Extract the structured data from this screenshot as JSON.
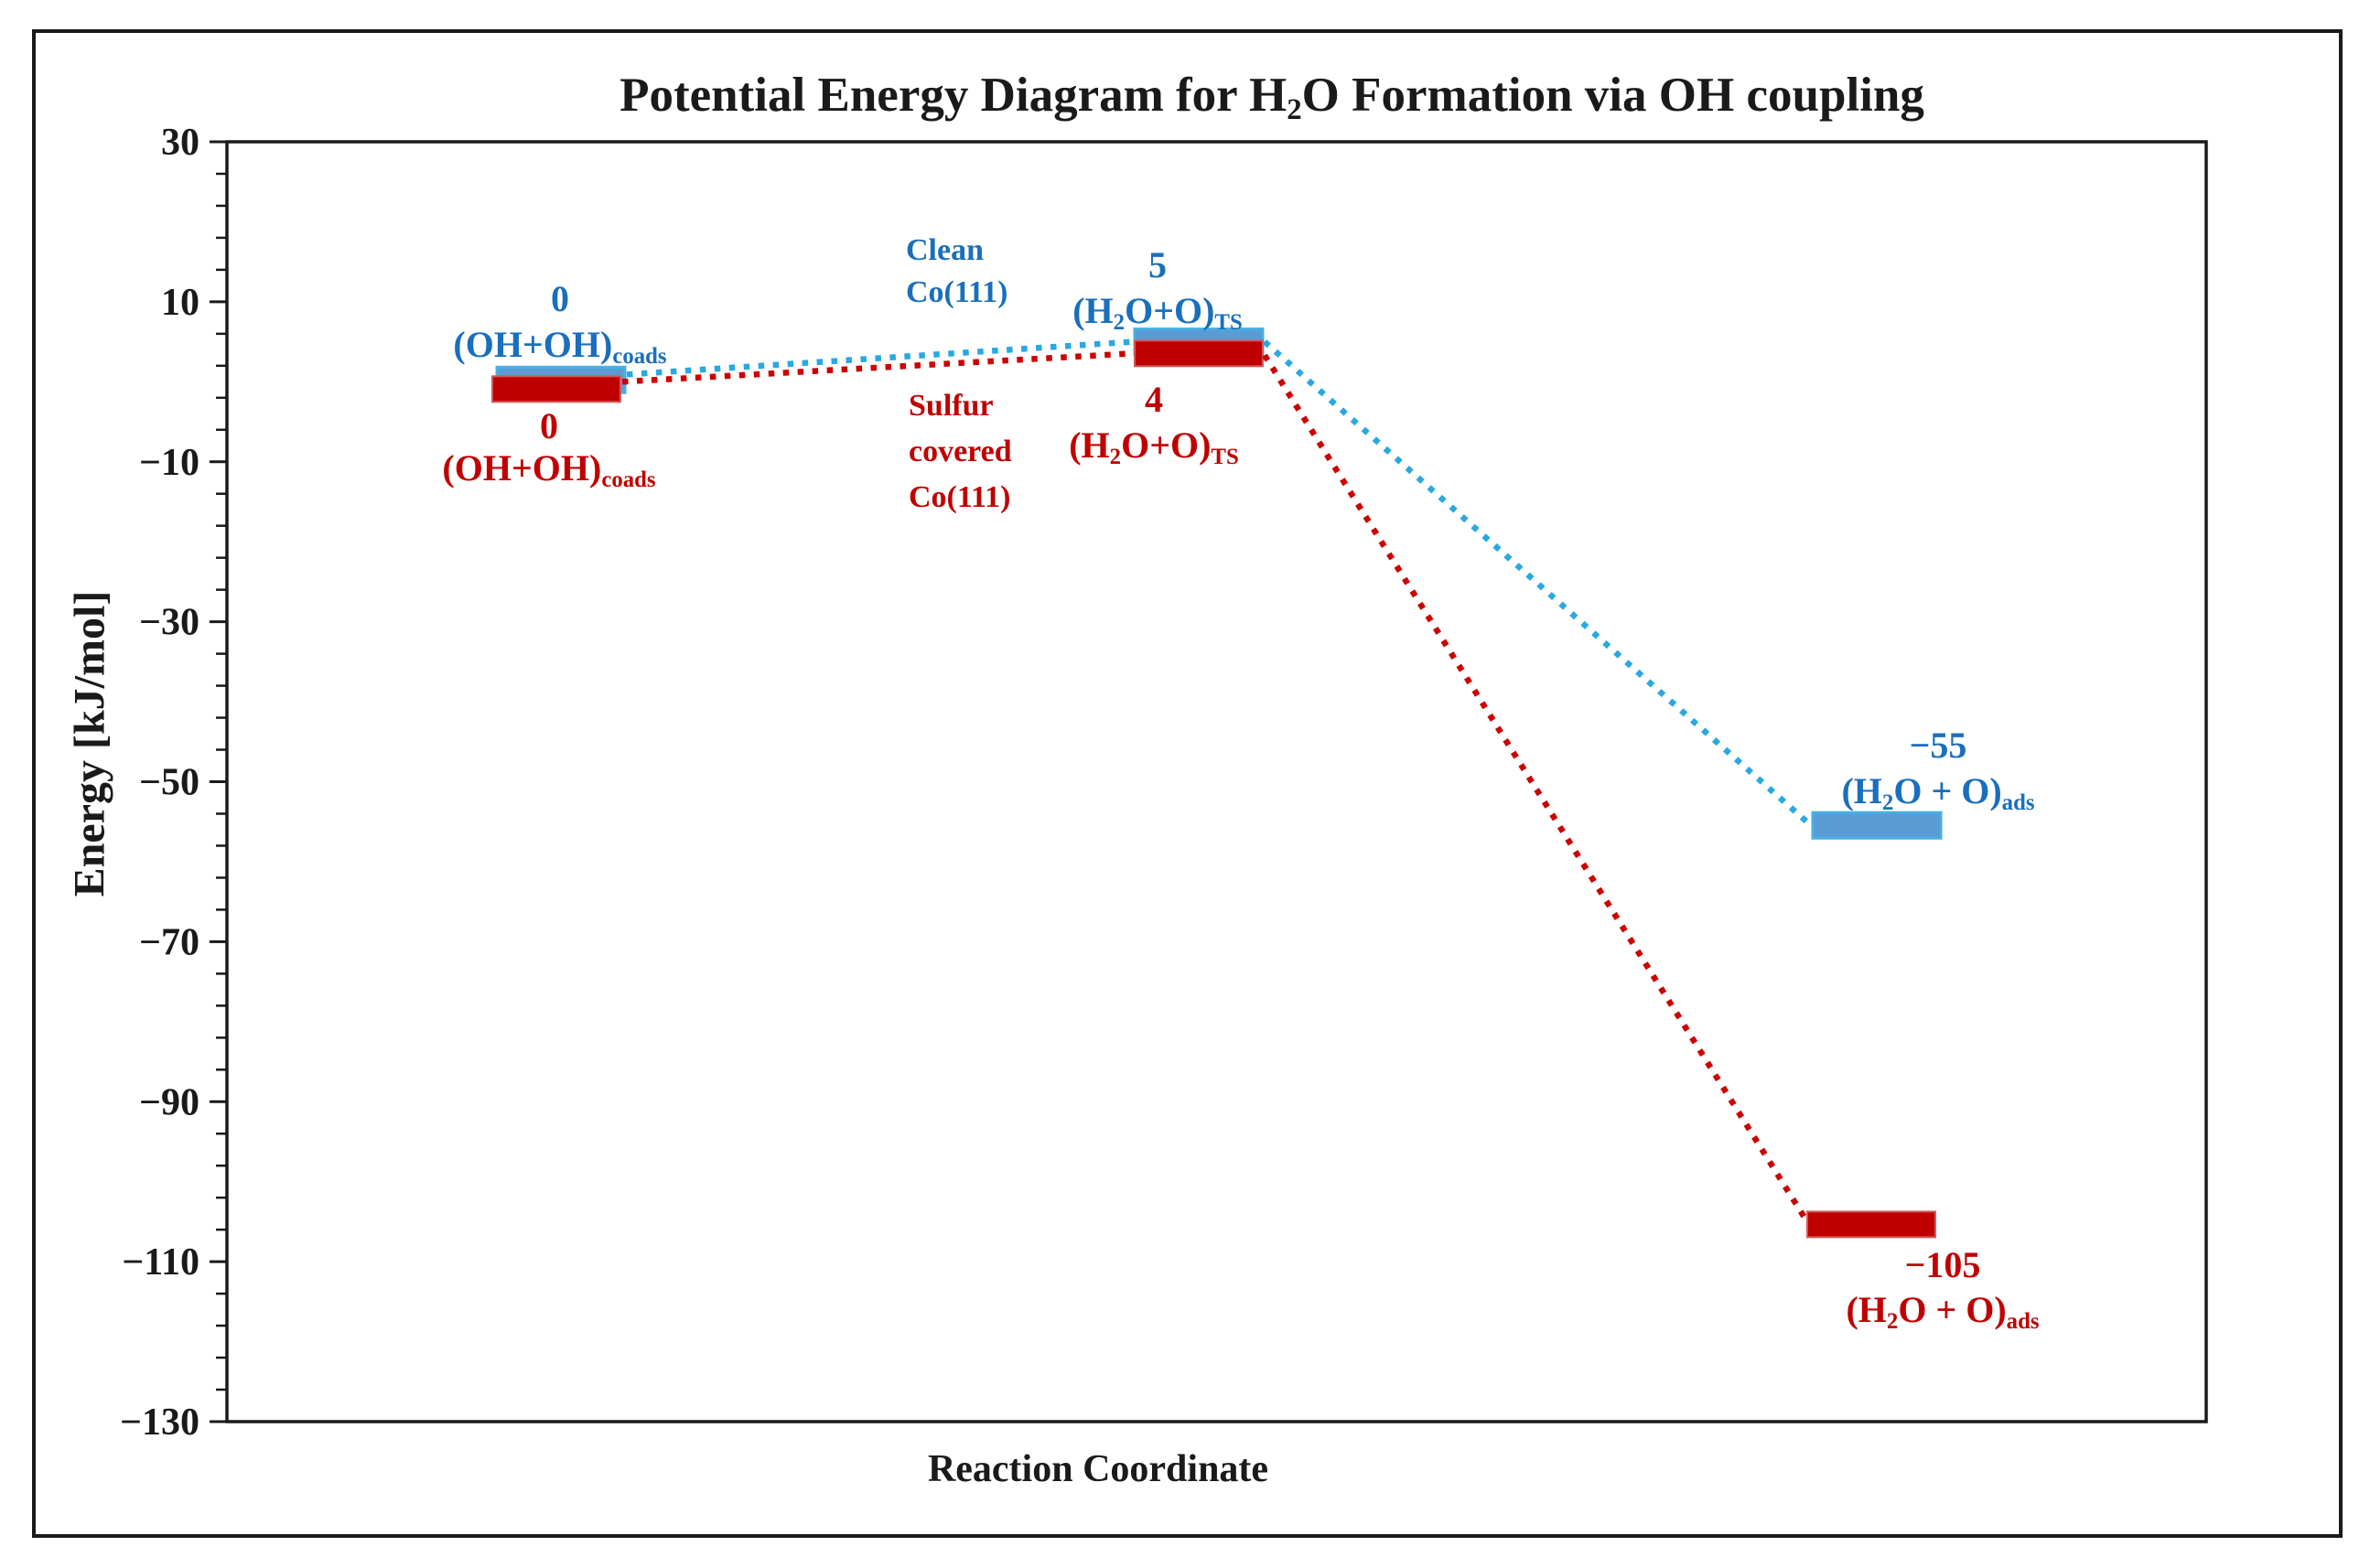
{
  "title": {
    "pre": "Potential Energy Diagram for H",
    "sub": "2",
    "post": "O Formation via OH coupling"
  },
  "y_axis": {
    "label": "Energy [kJ/mol]",
    "tick_labels": [
      "30",
      "10",
      "−10",
      "−30",
      "−50",
      "−70",
      "−90",
      "−110",
      "−130"
    ]
  },
  "x_axis": {
    "label": "Reaction Coordinate"
  },
  "series": {
    "clean": {
      "name_lines": [
        "Clean",
        "Co(111)"
      ],
      "points": [
        {
          "value_label": "0",
          "formula": {
            "pre": "(OH+OH)",
            "sub": "coads"
          }
        },
        {
          "value_label": "5",
          "formula": {
            "pre": "(H",
            "sub2": "2",
            "mid": "O+O)",
            "sub": "TS"
          }
        },
        {
          "value_label": "−55",
          "formula": {
            "pre": "(H",
            "sub2": "2",
            "mid": "O + O)",
            "sub": "ads"
          }
        }
      ]
    },
    "sulfur": {
      "name_lines": [
        "Sulfur",
        "covered",
        "Co(111)"
      ],
      "points": [
        {
          "value_label": "0",
          "formula": {
            "pre": "(OH+OH)",
            "sub": "coads"
          }
        },
        {
          "value_label": "4",
          "formula": {
            "pre": "(H",
            "sub2": "2",
            "mid": "O+O)",
            "sub": "TS"
          }
        },
        {
          "value_label": "−105",
          "formula": {
            "pre": "(H",
            "sub2": "2",
            "mid": "O + O)",
            "sub": "ads"
          }
        }
      ]
    }
  },
  "colors": {
    "black": "#1a1a1a",
    "blue_text": "#1a6fbc",
    "blue_dots": "#29a8e1",
    "red": "#c00000",
    "red_dots": "#cc0000",
    "series_bars": [
      {
        "fill": "#5b9bd5",
        "edge": "#46afe4"
      },
      {
        "fill": "#c00000",
        "edge": "#cf5b5b"
      }
    ]
  },
  "chart_data": {
    "type": "line",
    "subtype": "energy-level-diagram",
    "title": "Potential Energy Diagram for H2O Formation via OH coupling",
    "xlabel": "Reaction Coordinate",
    "ylabel": "Energy [kJ/mol]",
    "ylim": [
      -130,
      30
    ],
    "y_major_unit": 20,
    "y_minor_unit": 4,
    "grid": false,
    "legend": "inline-text-annotations",
    "categories": [
      "(OH+OH)coads",
      "(H2O+O)TS",
      "(H2O+O)ads"
    ],
    "series": [
      {
        "name": "Clean Co(111)",
        "color": "#1a6fbc",
        "values": [
          0,
          5,
          -55
        ]
      },
      {
        "name": "Sulfur covered Co(111)",
        "color": "#c00000",
        "values": [
          0,
          4,
          -105
        ]
      }
    ]
  }
}
